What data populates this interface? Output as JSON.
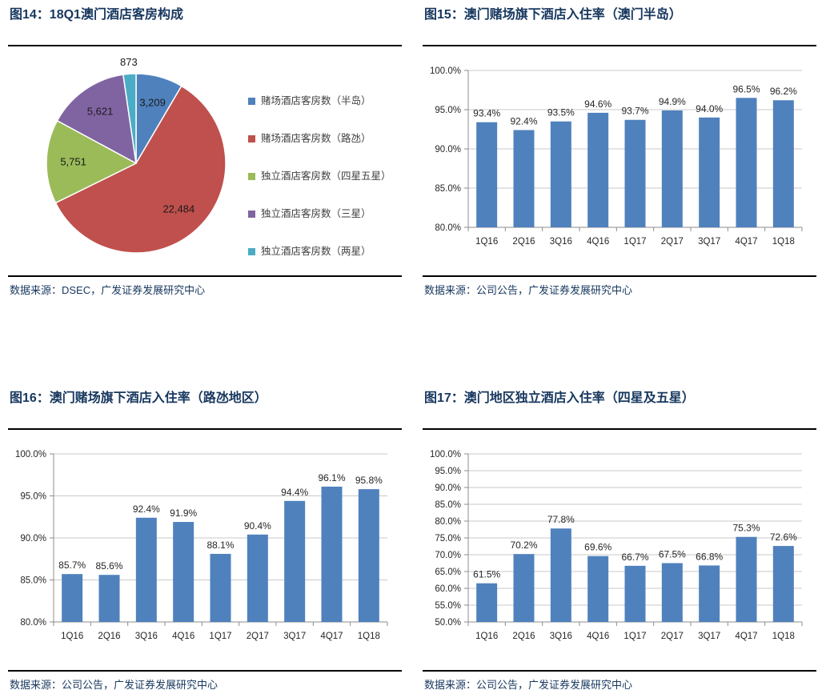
{
  "page": {
    "background": "#ffffff",
    "title_color": "#17375e",
    "rule_color": "#000000",
    "axis_color": "#8c8c8c",
    "gridline_color": "#c9c9c9",
    "label_color": "#262626"
  },
  "chart_data": [
    {
      "type": "pie",
      "title": "图14：18Q1澳门酒店客房构成",
      "source": "数据来源：DSEC，广发证券发展研究中心",
      "labels": [
        "赌场酒店客房数（半岛）",
        "赌场酒店客房数（路氹）",
        "独立酒店客房数（四星五星）",
        "独立酒店客房数（三星）",
        "独立酒店客房数（两星）"
      ],
      "values": [
        3209,
        22484,
        5751,
        5621,
        873
      ],
      "data_labels": [
        "3,209",
        "22,484",
        "5,751",
        "5,621",
        "873"
      ],
      "colors": [
        "#4f81bd",
        "#c0504d",
        "#9bbb59",
        "#8064a2",
        "#4bacc6"
      ],
      "legend_position": "right",
      "start_angle_deg": 0,
      "direction": "clockwise"
    },
    {
      "type": "bar",
      "title": "图15：澳门赌场旗下酒店入住率（澳门半岛）",
      "source": "数据来源：公司公告，广发证券发展研究中心",
      "categories": [
        "1Q16",
        "2Q16",
        "3Q16",
        "4Q16",
        "1Q17",
        "2Q17",
        "3Q17",
        "4Q17",
        "1Q18"
      ],
      "values": [
        93.4,
        92.4,
        93.5,
        94.6,
        93.7,
        94.9,
        94.0,
        96.5,
        96.2
      ],
      "value_labels": [
        "93.4%",
        "92.4%",
        "93.5%",
        "94.6%",
        "93.7%",
        "94.9%",
        "94.0%",
        "96.5%",
        "96.2%"
      ],
      "ylim": [
        80,
        100
      ],
      "ytick_step": 5,
      "ytick_format": "percent_1dp",
      "bar_color": "#4f81bd",
      "grid": true,
      "legend_position": "none"
    },
    {
      "type": "bar",
      "title": "图16：澳门赌场旗下酒店入住率（路氹地区）",
      "source": "数据来源：公司公告，广发证券发展研究中心",
      "categories": [
        "1Q16",
        "2Q16",
        "3Q16",
        "4Q16",
        "1Q17",
        "2Q17",
        "3Q17",
        "4Q17",
        "1Q18"
      ],
      "values": [
        85.7,
        85.6,
        92.4,
        91.9,
        88.1,
        90.4,
        94.4,
        96.1,
        95.8
      ],
      "value_labels": [
        "85.7%",
        "85.6%",
        "92.4%",
        "91.9%",
        "88.1%",
        "90.4%",
        "94.4%",
        "96.1%",
        "95.8%"
      ],
      "ylim": [
        80,
        100
      ],
      "ytick_step": 5,
      "ytick_format": "percent_1dp",
      "bar_color": "#4f81bd",
      "grid": true,
      "legend_position": "none"
    },
    {
      "type": "bar",
      "title": "图17：澳门地区独立酒店入住率（四星及五星）",
      "source": "数据来源：公司公告，广发证券发展研究中心",
      "categories": [
        "1Q16",
        "2Q16",
        "3Q16",
        "4Q16",
        "1Q17",
        "2Q17",
        "3Q17",
        "4Q17",
        "1Q18"
      ],
      "values": [
        61.5,
        70.2,
        77.8,
        69.6,
        66.7,
        67.5,
        66.8,
        75.3,
        72.6
      ],
      "value_labels": [
        "61.5%",
        "70.2%",
        "77.8%",
        "69.6%",
        "66.7%",
        "67.5%",
        "66.8%",
        "75.3%",
        "72.6%"
      ],
      "ylim": [
        50,
        100
      ],
      "ytick_step": 5,
      "ytick_format": "percent_1dp",
      "bar_color": "#4f81bd",
      "grid": true,
      "legend_position": "none"
    }
  ]
}
